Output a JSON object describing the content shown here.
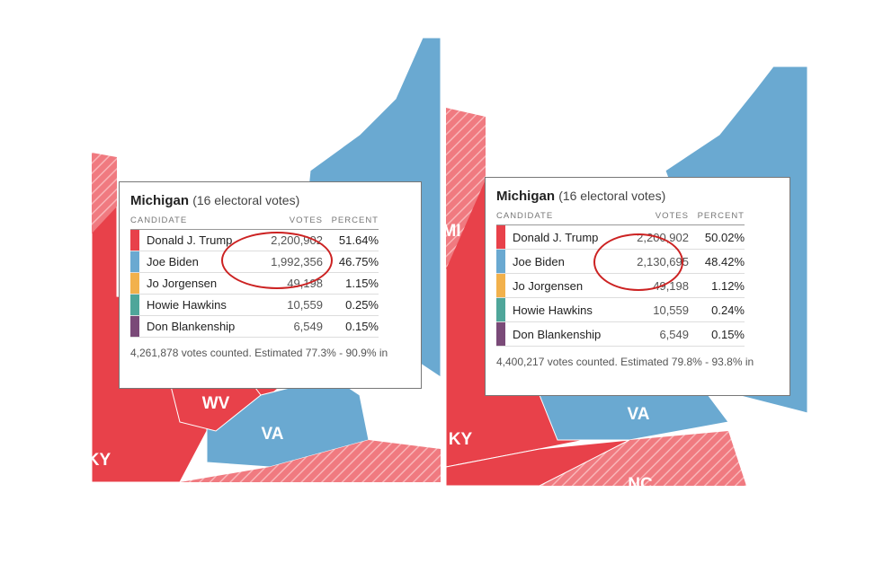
{
  "panels": [
    {
      "title": "Michigan",
      "subtitle": "(16 electoral votes)",
      "headers": [
        "CANDIDATE",
        "VOTES",
        "PERCENT"
      ],
      "rows": [
        {
          "candidate": "Donald J. Trump",
          "votes": "2,200,902",
          "percent": "51.64%",
          "color": "#e8414a"
        },
        {
          "candidate": "Joe Biden",
          "votes": "1,992,356",
          "percent": "46.75%",
          "color": "#6aa9d1"
        },
        {
          "candidate": "Jo Jorgensen",
          "votes": "49,198",
          "percent": "1.15%",
          "color": "#f2b14c"
        },
        {
          "candidate": "Howie Hawkins",
          "votes": "10,559",
          "percent": "0.25%",
          "color": "#4fa69a"
        },
        {
          "candidate": "Don Blankenship",
          "votes": "6,549",
          "percent": "0.15%",
          "color": "#7a4a78"
        }
      ],
      "footer": "4,261,878 votes counted. Estimated 77.3% - 90.9% in",
      "map_labels": [
        "WV",
        "VA",
        "KY"
      ]
    },
    {
      "title": "Michigan",
      "subtitle": "(16 electoral votes)",
      "headers": [
        "CANDIDATE",
        "VOTES",
        "PERCENT"
      ],
      "rows": [
        {
          "candidate": "Donald J. Trump",
          "votes": "2,200,902",
          "percent": "50.02%",
          "color": "#e8414a"
        },
        {
          "candidate": "Joe Biden",
          "votes": "2,130,695",
          "percent": "48.42%",
          "color": "#6aa9d1"
        },
        {
          "candidate": "Jo Jorgensen",
          "votes": "49,198",
          "percent": "1.12%",
          "color": "#f2b14c"
        },
        {
          "candidate": "Howie Hawkins",
          "votes": "10,559",
          "percent": "0.24%",
          "color": "#4fa69a"
        },
        {
          "candidate": "Don Blankenship",
          "votes": "6,549",
          "percent": "0.15%",
          "color": "#7a4a78"
        }
      ],
      "footer": "4,400,217 votes counted. Estimated 79.8% - 93.8% in",
      "map_labels": [
        "MI",
        "VA",
        "KY",
        "NC"
      ]
    }
  ]
}
